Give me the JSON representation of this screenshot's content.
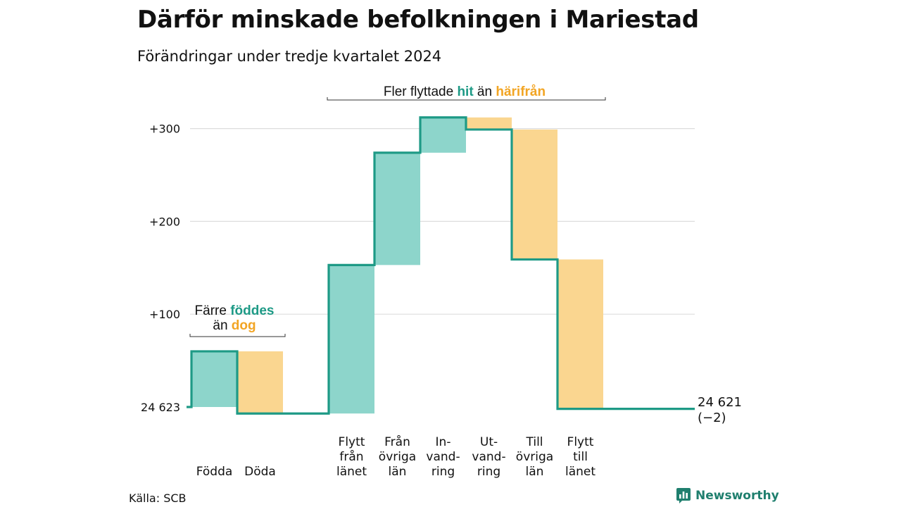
{
  "header": {
    "title": "Därför minskade befolkningen i Mariestad",
    "subtitle": "Förändringar under tredje kvartalet 2024"
  },
  "footer": {
    "source": "Källa: SCB",
    "logo_text": "Newsworthy",
    "logo_icon": "bar-chart-icon"
  },
  "chart_data": {
    "type": "waterfall",
    "start_value": 24623,
    "start_label": "24 623",
    "end_label": "24 621",
    "end_change_label": "(−2)",
    "y_ticks": [
      {
        "value": 100,
        "label": "+100"
      },
      {
        "value": 200,
        "label": "+200"
      },
      {
        "value": 300,
        "label": "+300"
      }
    ],
    "grid": true,
    "steps": [
      {
        "lines": [
          "Födda"
        ],
        "change": 60,
        "kind": "in"
      },
      {
        "lines": [
          "Döda"
        ],
        "change": -67,
        "kind": "out"
      },
      {
        "lines": [
          "Flytt",
          "från",
          "länet"
        ],
        "change": 160,
        "kind": "in"
      },
      {
        "lines": [
          "Från",
          "övriga",
          "län"
        ],
        "change": 121,
        "kind": "in"
      },
      {
        "lines": [
          "In-",
          "vand-",
          "ring"
        ],
        "change": 38,
        "kind": "in"
      },
      {
        "lines": [
          "Ut-",
          "vand-",
          "ring"
        ],
        "change": -13,
        "kind": "out"
      },
      {
        "lines": [
          "Till",
          "övriga",
          "län"
        ],
        "change": -140,
        "kind": "out"
      },
      {
        "lines": [
          "Flytt",
          "till",
          "länet"
        ],
        "change": -161,
        "kind": "out"
      }
    ],
    "annotations": [
      {
        "parts": [
          {
            "text": "Färre ",
            "style": "plain"
          },
          {
            "text": "föddes",
            "style": "in"
          }
        ],
        "parts2": [
          {
            "text": "än ",
            "style": "plain"
          },
          {
            "text": "dog",
            "style": "out"
          }
        ]
      },
      {
        "parts": [
          {
            "text": "Fler flyttade ",
            "style": "plain"
          },
          {
            "text": "hit",
            "style": "in"
          },
          {
            "text": " än ",
            "style": "plain"
          },
          {
            "text": "härifrån",
            "style": "out"
          }
        ]
      }
    ],
    "colors": {
      "in_fill": "#8dd5cb",
      "out_fill": "#fad690",
      "line": "#1e9a86",
      "in_text": "#1e9a86",
      "out_text": "#f2a524",
      "grid": "#dddddd"
    }
  }
}
